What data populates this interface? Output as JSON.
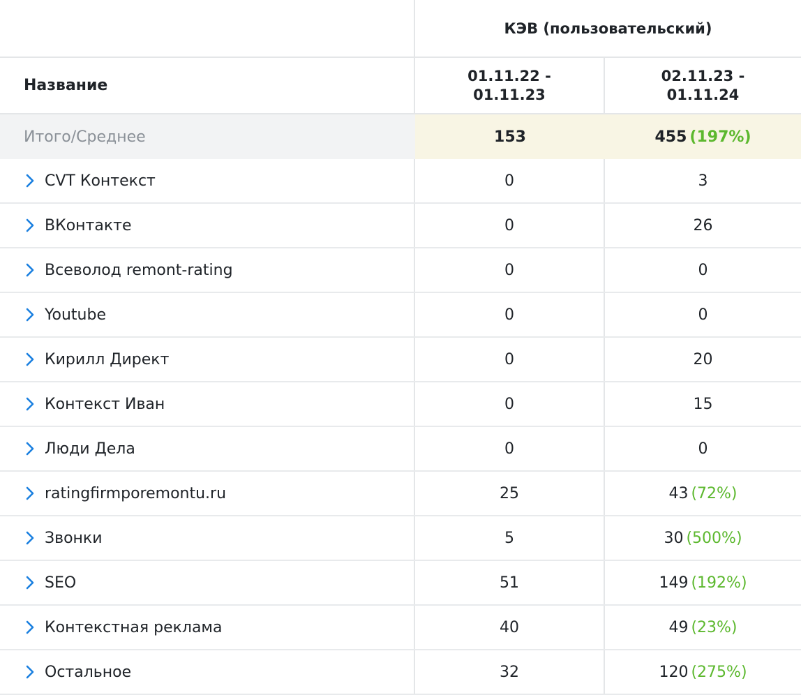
{
  "header": {
    "metric_title": "КЭВ (пользовательский)",
    "name_column": "Название",
    "periods": [
      {
        "line1": "01.11.22 -",
        "line2": "01.11.23"
      },
      {
        "line1": "02.11.23 -",
        "line2": "01.11.24"
      }
    ]
  },
  "total": {
    "label": "Итого/Среднее",
    "p1": "153",
    "p2": "455",
    "p2_change": "(197%)"
  },
  "rows": [
    {
      "name": "CVT Контекст",
      "p1": "0",
      "p2": "3",
      "p2_change": ""
    },
    {
      "name": "ВКонтакте",
      "p1": "0",
      "p2": "26",
      "p2_change": ""
    },
    {
      "name": "Всеволод remont-rating",
      "p1": "0",
      "p2": "0",
      "p2_change": ""
    },
    {
      "name": "Youtube",
      "p1": "0",
      "p2": "0",
      "p2_change": ""
    },
    {
      "name": "Кирилл Директ",
      "p1": "0",
      "p2": "20",
      "p2_change": ""
    },
    {
      "name": "Контекст Иван",
      "p1": "0",
      "p2": "15",
      "p2_change": ""
    },
    {
      "name": "Люди Дела",
      "p1": "0",
      "p2": "0",
      "p2_change": ""
    },
    {
      "name": "ratingfirmporemontu.ru",
      "p1": "25",
      "p2": "43",
      "p2_change": "(72%)"
    },
    {
      "name": "Звонки",
      "p1": "5",
      "p2": "30",
      "p2_change": "(500%)"
    },
    {
      "name": "SEO",
      "p1": "51",
      "p2": "149",
      "p2_change": "(192%)"
    },
    {
      "name": "Контекстная реклама",
      "p1": "40",
      "p2": "49",
      "p2_change": "(23%)"
    },
    {
      "name": "Остальное",
      "p1": "32",
      "p2": "120",
      "p2_change": "(275%)"
    }
  ],
  "colors": {
    "chevron": "#1a7fe0",
    "positive_change": "#5cb82e",
    "total_highlight": "#f8f5e4"
  },
  "icons": {
    "row_expand": "chevron-right-icon"
  }
}
